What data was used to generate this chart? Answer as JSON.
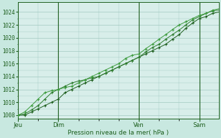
{
  "background_color": "#c8e8e0",
  "plot_bg_color": "#d8eeea",
  "grid_color": "#a0c8c0",
  "xlabel": "Pression niveau de la mer( hPa )",
  "ylim": [
    1007.5,
    1025.5
  ],
  "yticks": [
    1008,
    1010,
    1012,
    1014,
    1016,
    1018,
    1020,
    1022,
    1024
  ],
  "dark_green": "#1a5c1a",
  "mid_green": "#2a7a2a",
  "light_green": "#3a9a3a",
  "day_labels": [
    "Jeu",
    "Dim",
    "Ven",
    "Sam"
  ],
  "day_positions": [
    0,
    48,
    144,
    216
  ],
  "n_points": 240,
  "line1_pts": [
    [
      0,
      1008
    ],
    [
      8,
      1008
    ],
    [
      16,
      1008.5
    ],
    [
      24,
      1009
    ],
    [
      32,
      1009.5
    ],
    [
      40,
      1010
    ],
    [
      48,
      1010.5
    ],
    [
      56,
      1011.5
    ],
    [
      64,
      1012
    ],
    [
      72,
      1012.5
    ],
    [
      80,
      1013
    ],
    [
      88,
      1013.5
    ],
    [
      96,
      1014
    ],
    [
      104,
      1014.5
    ],
    [
      112,
      1015
    ],
    [
      120,
      1015.5
    ],
    [
      128,
      1016
    ],
    [
      136,
      1016.5
    ],
    [
      144,
      1017
    ],
    [
      152,
      1017.5
    ],
    [
      160,
      1018
    ],
    [
      168,
      1018.5
    ],
    [
      176,
      1019
    ],
    [
      184,
      1019.8
    ],
    [
      192,
      1020.5
    ],
    [
      200,
      1021.5
    ],
    [
      208,
      1022.3
    ],
    [
      216,
      1023
    ],
    [
      224,
      1023.3
    ],
    [
      232,
      1023.8
    ],
    [
      239,
      1024
    ]
  ],
  "line2_pts": [
    [
      0,
      1008
    ],
    [
      8,
      1008.2
    ],
    [
      16,
      1008.8
    ],
    [
      24,
      1009.5
    ],
    [
      32,
      1010.5
    ],
    [
      40,
      1011.5
    ],
    [
      48,
      1012
    ],
    [
      56,
      1012.5
    ],
    [
      64,
      1013
    ],
    [
      72,
      1013.3
    ],
    [
      80,
      1013.5
    ],
    [
      88,
      1013.8
    ],
    [
      96,
      1014
    ],
    [
      104,
      1014.5
    ],
    [
      112,
      1015
    ],
    [
      120,
      1015.5
    ],
    [
      128,
      1016
    ],
    [
      136,
      1016.5
    ],
    [
      144,
      1017
    ],
    [
      152,
      1017.8
    ],
    [
      160,
      1018.5
    ],
    [
      168,
      1019
    ],
    [
      176,
      1019.8
    ],
    [
      184,
      1020.5
    ],
    [
      192,
      1021.2
    ],
    [
      200,
      1022
    ],
    [
      208,
      1022.8
    ],
    [
      216,
      1023.3
    ],
    [
      224,
      1023.8
    ],
    [
      232,
      1024.2
    ],
    [
      239,
      1024.3
    ]
  ],
  "line3_pts": [
    [
      0,
      1008
    ],
    [
      8,
      1008.5
    ],
    [
      16,
      1009.5
    ],
    [
      24,
      1010.5
    ],
    [
      32,
      1011.5
    ],
    [
      40,
      1011.8
    ],
    [
      48,
      1012
    ],
    [
      56,
      1012.3
    ],
    [
      64,
      1012.5
    ],
    [
      72,
      1013
    ],
    [
      80,
      1013.5
    ],
    [
      88,
      1014
    ],
    [
      96,
      1014.5
    ],
    [
      104,
      1015
    ],
    [
      112,
      1015.5
    ],
    [
      120,
      1016
    ],
    [
      128,
      1016.8
    ],
    [
      136,
      1017.3
    ],
    [
      144,
      1017.5
    ],
    [
      152,
      1018.3
    ],
    [
      160,
      1019
    ],
    [
      168,
      1019.8
    ],
    [
      176,
      1020.5
    ],
    [
      184,
      1021.3
    ],
    [
      192,
      1022
    ],
    [
      200,
      1022.5
    ],
    [
      208,
      1023
    ],
    [
      216,
      1023.5
    ],
    [
      224,
      1023.8
    ],
    [
      232,
      1024.3
    ],
    [
      239,
      1024.5
    ]
  ],
  "marker_every": 8
}
